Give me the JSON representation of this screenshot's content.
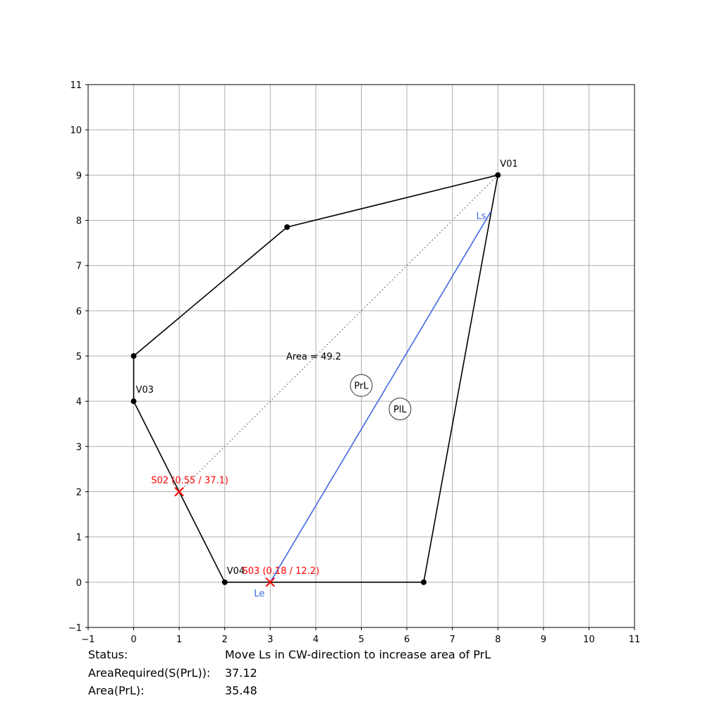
{
  "chart_data": {
    "type": "polygon-partition",
    "xlim": [
      -1,
      11
    ],
    "ylim": [
      -1,
      11
    ],
    "xticks": [
      "−1",
      "0",
      "1",
      "2",
      "3",
      "4",
      "5",
      "6",
      "7",
      "8",
      "9",
      "10",
      "11"
    ],
    "yticks": [
      "−1",
      "0",
      "1",
      "2",
      "3",
      "4",
      "5",
      "6",
      "7",
      "8",
      "9",
      "10",
      "11"
    ],
    "grid": true,
    "polygon": [
      [
        8,
        9
      ],
      [
        3.37,
        7.85
      ],
      [
        0,
        5
      ],
      [
        0,
        4
      ],
      [
        2,
        0
      ],
      [
        6.37,
        0
      ]
    ],
    "vertex_labels": [
      {
        "text": "V01",
        "x": 8,
        "y": 9
      },
      {
        "text": "V03",
        "x": 0,
        "y": 4
      },
      {
        "text": "V04",
        "x": 2,
        "y": 0
      }
    ],
    "diagonal": {
      "from": [
        8,
        9
      ],
      "to": [
        1,
        2
      ]
    },
    "cut_line": {
      "from": [
        7.85,
        8.2
      ],
      "to": [
        3,
        0
      ],
      "start_label": "Ls",
      "end_label": "Le"
    },
    "split_points": [
      {
        "label": "S02 (0.55 / 37.1)",
        "x": 1,
        "y": 2
      },
      {
        "label": "S03 (0.18 / 12.2)",
        "x": 3,
        "y": 0
      }
    ],
    "area_annotation": {
      "text": "Area = 49.2",
      "x": 3.35,
      "y": 5
    },
    "region_labels": [
      {
        "text": "PrL",
        "x": 5,
        "y": 4.35
      },
      {
        "text": "PlL",
        "x": 5.85,
        "y": 3.83
      }
    ],
    "colors": {
      "polygon": "#000000",
      "cut": "#4169e1",
      "split": "#ff0000",
      "diagonal": "#999999",
      "grid": "#b0b0b0"
    }
  },
  "status": {
    "label": "Status:",
    "value": "Move Ls in CW-direction to increase area of PrL",
    "area_required_label": "AreaRequired(S(PrL)):",
    "area_required_value": "37.12",
    "area_label": "Area(PrL):",
    "area_value": "35.48"
  }
}
